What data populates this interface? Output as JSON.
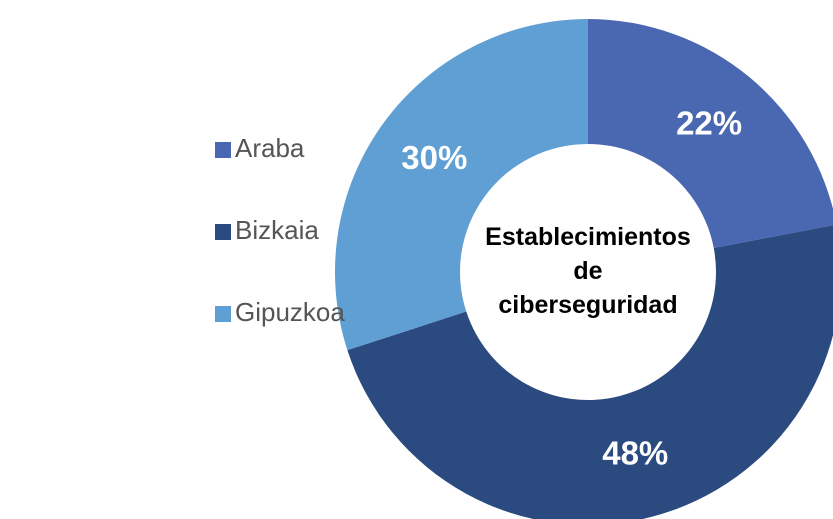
{
  "chart_data": {
    "type": "donut",
    "center_label": "Establecimientos de ciberseguridad",
    "categories": [
      "Araba",
      "Bizkaia",
      "Gipuzkoa"
    ],
    "values": [
      22,
      48,
      30
    ],
    "value_labels": [
      "22%",
      "48%",
      "30%"
    ],
    "colors": [
      "#4a68b2",
      "#2a4a80",
      "#5f9fd4"
    ],
    "legend": "left"
  }
}
